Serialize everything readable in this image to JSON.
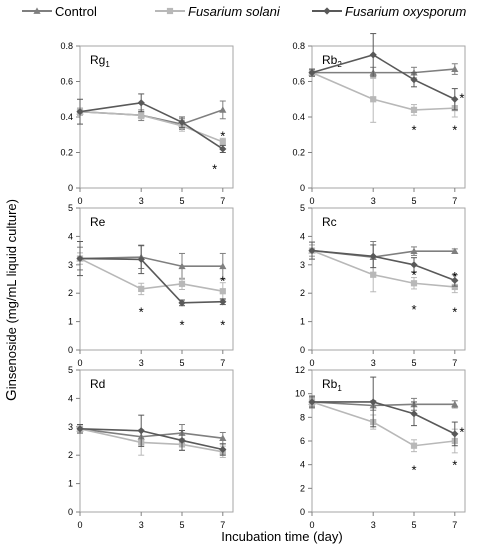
{
  "chart_data": {
    "type": "line",
    "ylabel_lead": "G",
    "ylabel_rest": "insenoside  (mg/mL  liquid  culture)",
    "xlabel": "Incubation  time  (day)",
    "legend": {
      "placement": "top",
      "entries": [
        {
          "name": "Control",
          "style": "normal",
          "color": "#7f7f7f",
          "marker": "triangle"
        },
        {
          "name": "Fusarium solani",
          "style": "italic",
          "color": "#b8b8b8",
          "marker": "square"
        },
        {
          "name": "Fusarium oxysporum",
          "style": "italic",
          "color": "#595959",
          "marker": "diamond"
        }
      ]
    },
    "panels": [
      {
        "title": "Rg",
        "subscript": "1",
        "x": [
          0,
          3,
          5,
          7
        ],
        "x_ticks": [
          "0",
          "3",
          "5",
          "7"
        ],
        "ylim": [
          0,
          0.8
        ],
        "y_ticks": [
          "0",
          "0.2",
          "0.4",
          "0.6",
          "0.8"
        ],
        "y_tick_values": [
          0,
          0.2,
          0.4,
          0.6,
          0.8
        ],
        "series": [
          {
            "name": "Control",
            "values": [
              0.43,
              0.41,
              0.36,
              0.44
            ],
            "err": [
              0.02,
              0.03,
              0.03,
              0.05
            ]
          },
          {
            "name": "Fusarium solani",
            "values": [
              0.43,
              0.41,
              0.35,
              0.26
            ],
            "err": [
              0.02,
              0.02,
              0.03,
              0.02
            ]
          },
          {
            "name": "Fusarium oxysporum",
            "values": [
              0.43,
              0.48,
              0.37,
              0.22
            ],
            "err": [
              0.07,
              0.05,
              0.03,
              0.02
            ]
          }
        ],
        "significance": [
          {
            "x": 7,
            "y": 0.295,
            "label": "*"
          },
          {
            "x": 6.6,
            "y": 0.11,
            "label": "*"
          }
        ]
      },
      {
        "title": "Rb",
        "subscript": "2",
        "x": [
          0,
          3,
          5,
          7
        ],
        "x_ticks": [
          "0",
          "3",
          "5",
          "7"
        ],
        "ylim": [
          0,
          0.8
        ],
        "y_ticks": [
          "0",
          "0.2",
          "0.4",
          "0.6",
          "0.8"
        ],
        "y_tick_values": [
          0,
          0.2,
          0.4,
          0.6,
          0.8
        ],
        "series": [
          {
            "name": "Control",
            "values": [
              0.65,
              0.65,
              0.65,
              0.67
            ],
            "err": [
              0.02,
              0.03,
              0.03,
              0.03
            ]
          },
          {
            "name": "Fusarium solani",
            "values": [
              0.65,
              0.5,
              0.44,
              0.45
            ],
            "err": [
              0.02,
              0.13,
              0.03,
              0.05
            ]
          },
          {
            "name": "Fusarium oxysporum",
            "values": [
              0.65,
              0.75,
              0.61,
              0.5
            ],
            "err": [
              0.02,
              0.12,
              0.04,
              0.06
            ]
          }
        ],
        "significance": [
          {
            "x": 5,
            "y": 0.33,
            "label": "*"
          },
          {
            "x": 7,
            "y": 0.33,
            "label": "*"
          },
          {
            "x": 7.35,
            "y": 0.51,
            "label": "*"
          }
        ]
      },
      {
        "title": "Re",
        "subscript": "",
        "x": [
          0,
          3,
          5,
          7
        ],
        "x_ticks": [
          "0",
          "3",
          "5",
          "7"
        ],
        "ylim": [
          0,
          5
        ],
        "y_ticks": [
          "0",
          "1",
          "2",
          "3",
          "4",
          "5"
        ],
        "y_tick_values": [
          0,
          1,
          2,
          3,
          4,
          5
        ],
        "series": [
          {
            "name": "Control",
            "values": [
              3.22,
              3.27,
              2.95,
              2.95
            ],
            "err": [
              0.4,
              0.4,
              0.45,
              0.45
            ]
          },
          {
            "name": "Fusarium solani",
            "values": [
              3.22,
              2.15,
              2.33,
              2.07
            ],
            "err": [
              0.2,
              0.2,
              0.2,
              0.3
            ]
          },
          {
            "name": "Fusarium oxysporum",
            "values": [
              3.22,
              3.19,
              1.66,
              1.7
            ],
            "err": [
              0.6,
              0.5,
              0.1,
              0.1
            ]
          }
        ],
        "significance": [
          {
            "x": 3,
            "y": 1.35,
            "label": "*"
          },
          {
            "x": 5,
            "y": 0.9,
            "label": "*"
          },
          {
            "x": 7,
            "y": 0.9,
            "label": "*"
          },
          {
            "x": 7,
            "y": 2.45,
            "label": "*"
          }
        ]
      },
      {
        "title": "Rc",
        "subscript": "",
        "x": [
          0,
          3,
          5,
          7
        ],
        "x_ticks": [
          "0",
          "3",
          "5",
          "7"
        ],
        "ylim": [
          0,
          5
        ],
        "y_ticks": [
          "0",
          "1",
          "2",
          "3",
          "4",
          "5"
        ],
        "y_tick_values": [
          0,
          1,
          2,
          3,
          4,
          5
        ],
        "series": [
          {
            "name": "Control",
            "values": [
              3.5,
              3.27,
              3.48,
              3.48
            ],
            "err": [
              0.2,
              0.55,
              0.15,
              0.08
            ]
          },
          {
            "name": "Fusarium solani",
            "values": [
              3.5,
              2.65,
              2.35,
              2.22
            ],
            "err": [
              0.2,
              0.6,
              0.2,
              0.2
            ]
          },
          {
            "name": "Fusarium oxysporum",
            "values": [
              3.5,
              3.3,
              3.0,
              2.45
            ],
            "err": [
              0.3,
              0.4,
              0.25,
              0.2
            ]
          }
        ],
        "significance": [
          {
            "x": 5,
            "y": 2.65,
            "label": "*"
          },
          {
            "x": 5,
            "y": 1.45,
            "label": "*"
          },
          {
            "x": 7,
            "y": 2.6,
            "label": "*"
          },
          {
            "x": 7,
            "y": 1.35,
            "label": "*"
          }
        ]
      },
      {
        "title": "Rd",
        "subscript": "",
        "x": [
          0,
          3,
          5,
          7
        ],
        "x_ticks": [
          "0",
          "3",
          "5",
          "7"
        ],
        "ylim": [
          0,
          5
        ],
        "y_ticks": [
          "0",
          "1",
          "2",
          "3",
          "4",
          "5"
        ],
        "y_tick_values": [
          0,
          1,
          2,
          3,
          4,
          5
        ],
        "series": [
          {
            "name": "Control",
            "values": [
              2.93,
              2.65,
              2.78,
              2.6
            ],
            "err": [
              0.15,
              0.2,
              0.3,
              0.2
            ]
          },
          {
            "name": "Fusarium solani",
            "values": [
              2.93,
              2.45,
              2.38,
              2.12
            ],
            "err": [
              0.1,
              0.45,
              0.2,
              0.2
            ]
          },
          {
            "name": "Fusarium oxysporum",
            "values": [
              2.93,
              2.86,
              2.52,
              2.2
            ],
            "err": [
              0.15,
              0.55,
              0.35,
              0.2
            ]
          }
        ],
        "significance": []
      },
      {
        "title": "Rb",
        "subscript": "1",
        "x": [
          0,
          3,
          5,
          7
        ],
        "x_ticks": [
          "0",
          "3",
          "5",
          "7"
        ],
        "ylim": [
          0,
          12
        ],
        "y_ticks": [
          "0",
          "2",
          "4",
          "6",
          "8",
          "10",
          "12"
        ],
        "y_tick_values": [
          0,
          2,
          4,
          6,
          8,
          10,
          12
        ],
        "series": [
          {
            "name": "Control",
            "values": [
              9.3,
              9.0,
              9.1,
              9.1
            ],
            "err": [
              0.4,
              0.4,
              0.5,
              0.3
            ]
          },
          {
            "name": "Fusarium solani",
            "values": [
              9.3,
              7.6,
              5.6,
              6.0
            ],
            "err": [
              0.3,
              0.6,
              0.5,
              1.0
            ]
          },
          {
            "name": "Fusarium oxysporum",
            "values": [
              9.3,
              9.3,
              8.3,
              6.6
            ],
            "err": [
              0.5,
              2.1,
              1.0,
              1.0
            ]
          }
        ],
        "significance": [
          {
            "x": 5,
            "y": 3.6,
            "label": "*"
          },
          {
            "x": 7,
            "y": 4.0,
            "label": "*"
          },
          {
            "x": 7.35,
            "y": 6.8,
            "label": "*"
          }
        ]
      }
    ]
  }
}
